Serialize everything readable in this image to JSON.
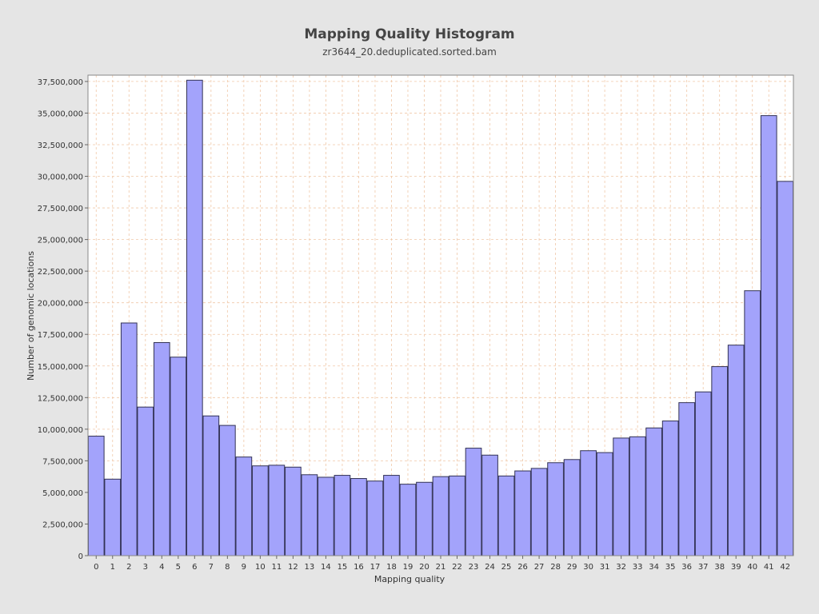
{
  "colors": {
    "background": "#e5e5e5",
    "plot_background": "#ffffff",
    "bar_fill": "#a3a3fb",
    "bar_stroke": "#333355",
    "grid": "#f0c8a8",
    "text": "#333333"
  },
  "chart_data": {
    "type": "bar",
    "title": "Mapping Quality Histogram",
    "subtitle": "zr3644_20.deduplicated.sorted.bam",
    "xlabel": "Mapping quality",
    "ylabel": "Number of genomic locations",
    "xlim": [
      -0.5,
      42.5
    ],
    "ylim": [
      0,
      38000000
    ],
    "grid": true,
    "legend": "none",
    "x_ticks": [
      0,
      1,
      2,
      3,
      4,
      5,
      6,
      7,
      8,
      9,
      10,
      11,
      12,
      13,
      14,
      15,
      16,
      17,
      18,
      19,
      20,
      21,
      22,
      23,
      24,
      25,
      26,
      27,
      28,
      29,
      30,
      31,
      32,
      33,
      34,
      35,
      36,
      37,
      38,
      39,
      40,
      41,
      42
    ],
    "y_ticks": [
      0,
      2500000,
      5000000,
      7500000,
      10000000,
      12500000,
      15000000,
      17500000,
      20000000,
      22500000,
      25000000,
      27500000,
      30000000,
      32500000,
      35000000,
      37500000
    ],
    "y_tick_labels": [
      "0",
      "2,500,000",
      "5,000,000",
      "7,500,000",
      "10,000,000",
      "12,500,000",
      "15,000,000",
      "17,500,000",
      "20,000,000",
      "22,500,000",
      "25,000,000",
      "27,500,000",
      "30,000,000",
      "32,500,000",
      "35,000,000",
      "37,500,000"
    ],
    "bars": [
      {
        "x": 0,
        "value": 9450000
      },
      {
        "x": 1,
        "value": 6050000
      },
      {
        "x": 2,
        "value": 18400000
      },
      {
        "x": 3,
        "value": 11750000
      },
      {
        "x": 4,
        "value": 16850000
      },
      {
        "x": 5,
        "value": 15700000
      },
      {
        "x": 6,
        "value": 37600000
      },
      {
        "x": 7,
        "value": 11050000
      },
      {
        "x": 8,
        "value": 10300000
      },
      {
        "x": 9,
        "value": 7800000
      },
      {
        "x": 10,
        "value": 7100000
      },
      {
        "x": 11,
        "value": 7150000
      },
      {
        "x": 12,
        "value": 7000000
      },
      {
        "x": 13,
        "value": 6400000
      },
      {
        "x": 14,
        "value": 6200000
      },
      {
        "x": 15,
        "value": 6350000
      },
      {
        "x": 16,
        "value": 6100000
      },
      {
        "x": 17,
        "value": 5900000
      },
      {
        "x": 18,
        "value": 6350000
      },
      {
        "x": 19,
        "value": 5650000
      },
      {
        "x": 20,
        "value": 5800000
      },
      {
        "x": 21,
        "value": 6250000
      },
      {
        "x": 22,
        "value": 6300000
      },
      {
        "x": 23,
        "value": 8500000
      },
      {
        "x": 24,
        "value": 7950000
      },
      {
        "x": 25,
        "value": 6300000
      },
      {
        "x": 26,
        "value": 6700000
      },
      {
        "x": 27,
        "value": 6900000
      },
      {
        "x": 28,
        "value": 7350000
      },
      {
        "x": 29,
        "value": 7600000
      },
      {
        "x": 30,
        "value": 8300000
      },
      {
        "x": 31,
        "value": 8150000
      },
      {
        "x": 32,
        "value": 9300000
      },
      {
        "x": 33,
        "value": 9400000
      },
      {
        "x": 34,
        "value": 10100000
      },
      {
        "x": 35,
        "value": 10650000
      },
      {
        "x": 36,
        "value": 12100000
      },
      {
        "x": 37,
        "value": 12950000
      },
      {
        "x": 38,
        "value": 14950000
      },
      {
        "x": 39,
        "value": 16650000
      },
      {
        "x": 40,
        "value": 20950000
      },
      {
        "x": 41,
        "value": 34800000
      },
      {
        "x": 42,
        "value": 29600000
      }
    ]
  }
}
